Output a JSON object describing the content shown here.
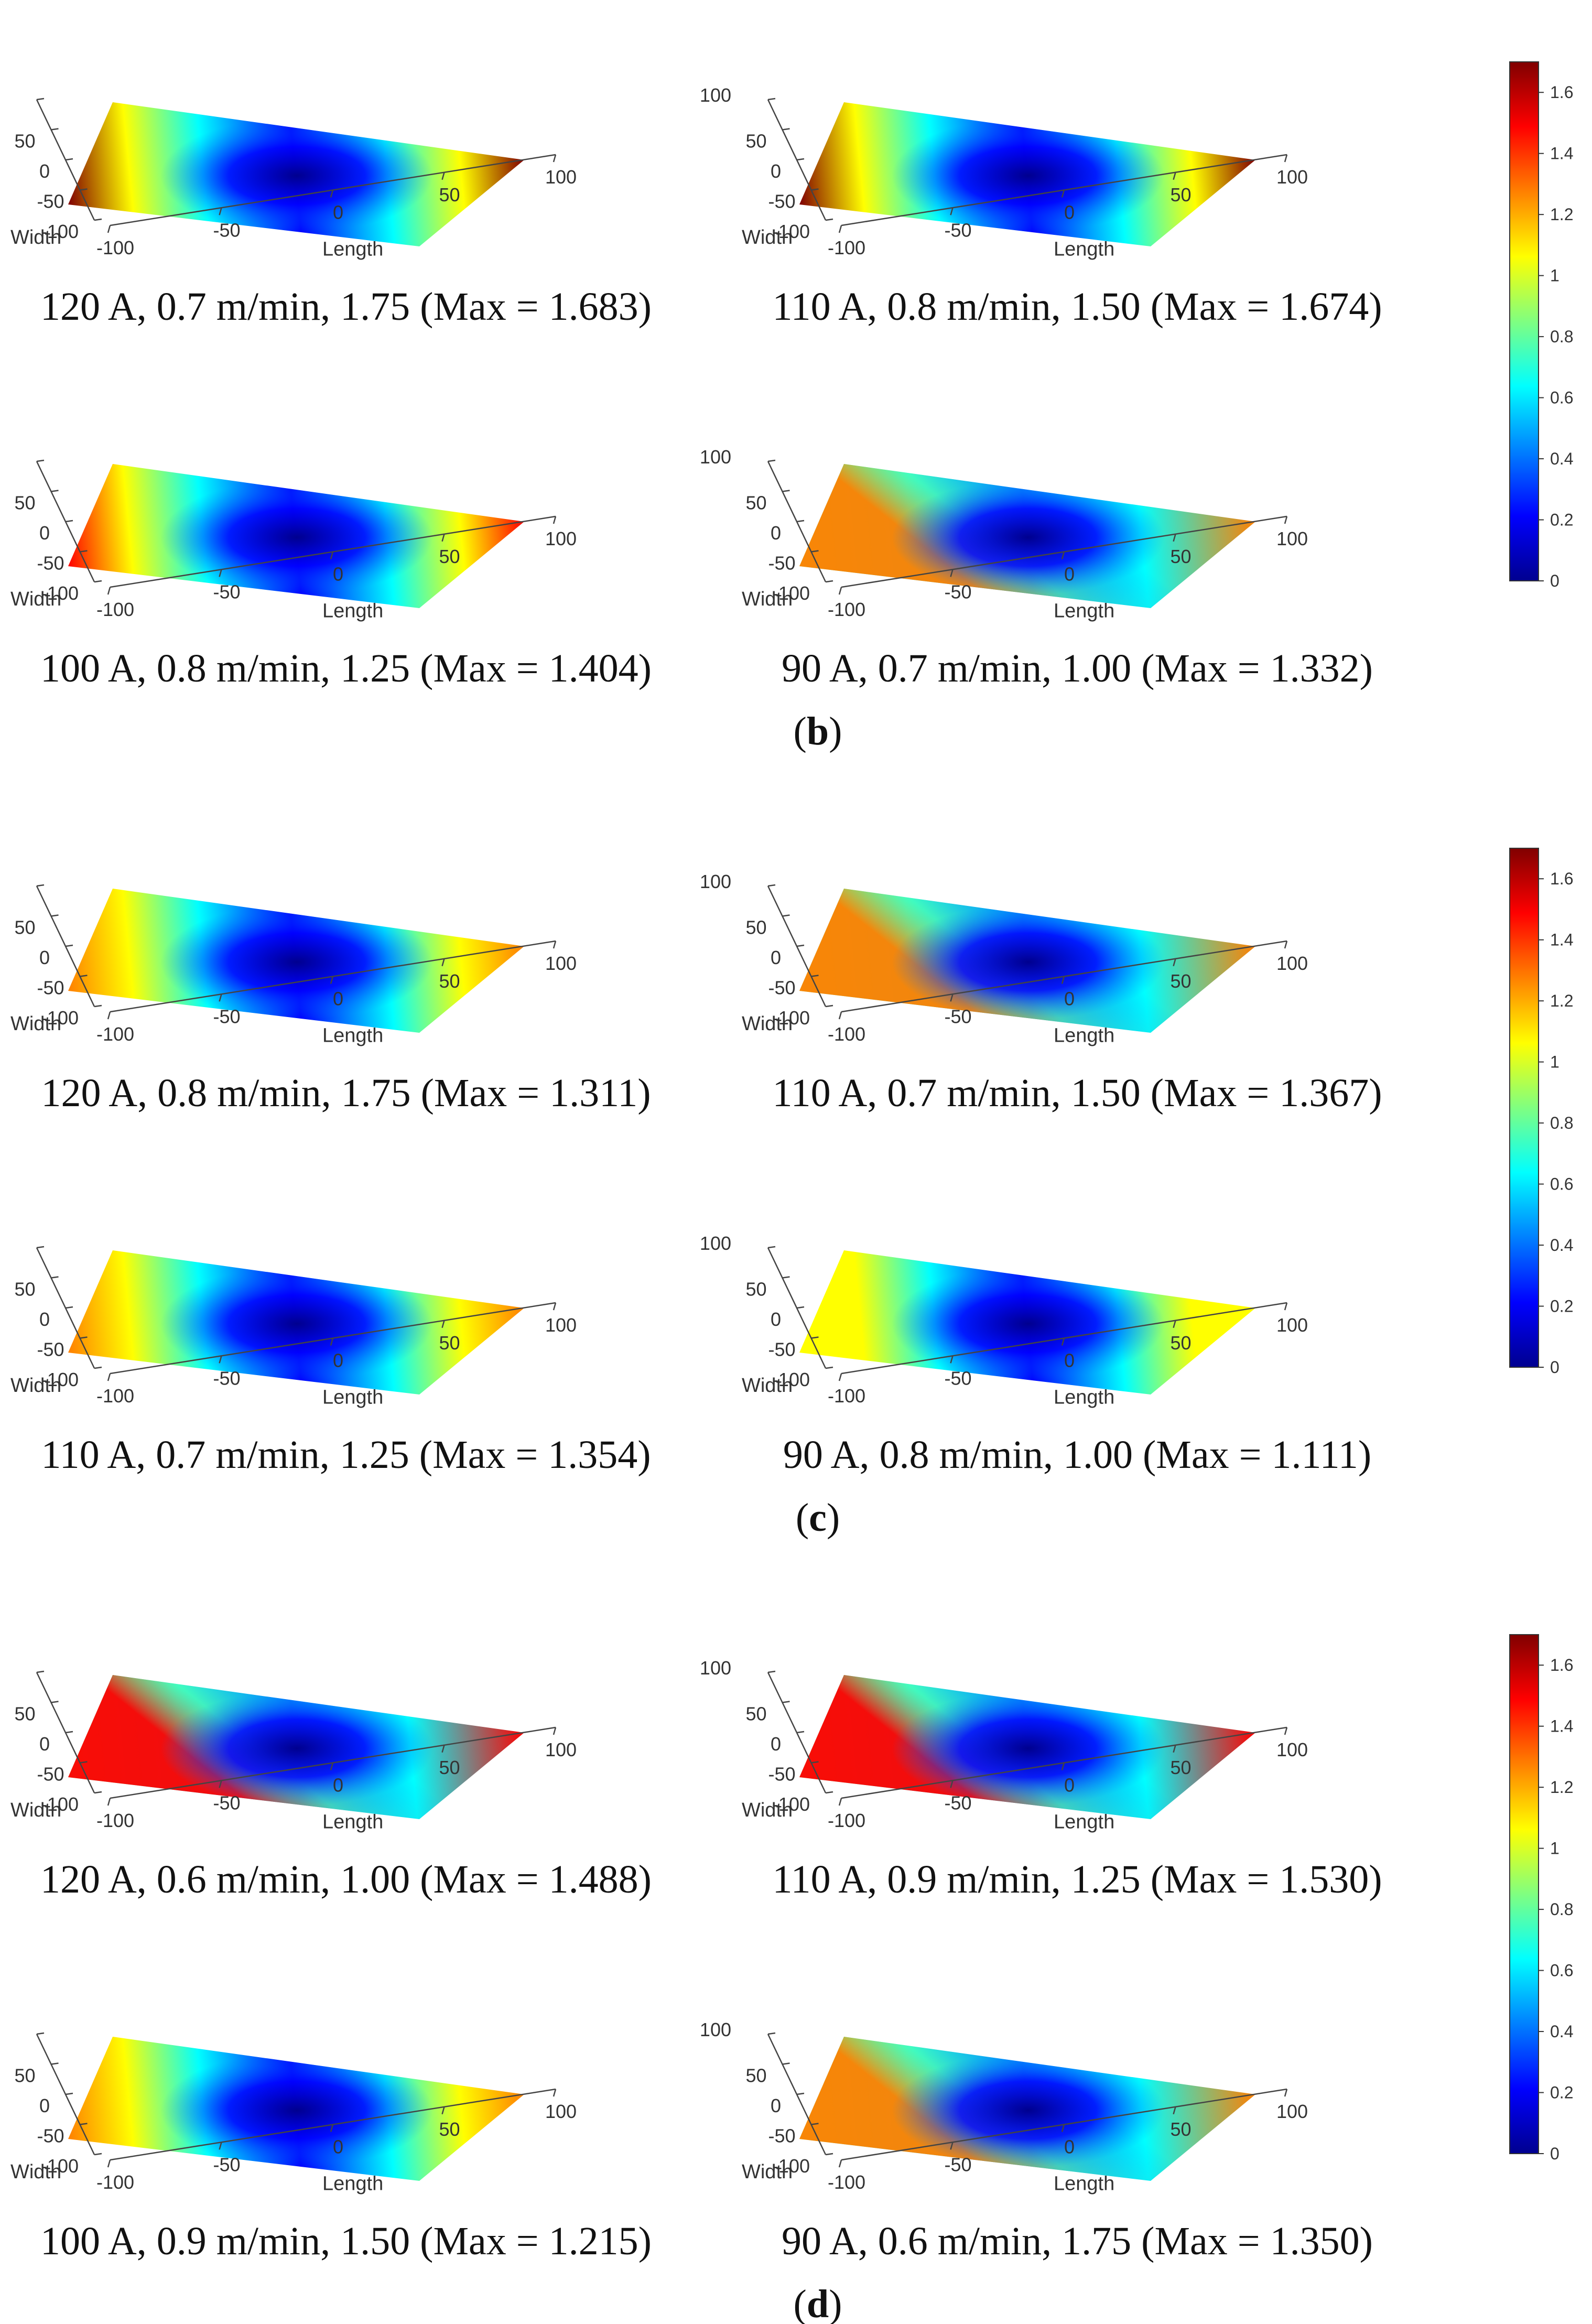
{
  "figure": {
    "surface_axes": {
      "width_label": "Width",
      "length_label": "Length",
      "width_ticks": [
        "100",
        "50",
        "0",
        "-50",
        "-100"
      ],
      "length_ticks": [
        "-100",
        "-50",
        "0",
        "50",
        "100"
      ]
    },
    "colorbar": {
      "ticks": [
        "0",
        "0.2",
        "0.4",
        "0.6",
        "0.8",
        "1",
        "1.2",
        "1.4",
        "1.6"
      ],
      "tick_values": [
        0,
        0.2,
        0.4,
        0.6,
        0.8,
        1.0,
        1.2,
        1.4,
        1.6
      ],
      "range": [
        0,
        1.7
      ],
      "colormap": "jet",
      "colors": [
        "#00008f",
        "#0000ff",
        "#0080ff",
        "#00ffff",
        "#80ff80",
        "#ffff00",
        "#ff8000",
        "#ff0000",
        "#800000"
      ]
    },
    "parts": [
      {
        "label": "b",
        "label_inner": "b",
        "panels": [
          {
            "caption": "120 A, 0.7 m/min, 1.75 (Max = 1.683)",
            "max": 1.683,
            "hot_side": "both-ends"
          },
          {
            "caption": "110 A, 0.8 m/min, 1.50 (Max = 1.674)",
            "max": 1.674,
            "hot_side": "both-ends"
          },
          {
            "caption": "100 A, 0.8 m/min, 1.25 (Max = 1.404)",
            "max": 1.404,
            "hot_side": "both-ends"
          },
          {
            "caption": "90 A, 0.7 m/min, 1.00 (Max = 1.332)",
            "max": 1.332,
            "hot_side": "front"
          }
        ]
      },
      {
        "label": "c",
        "label_inner": "c",
        "panels": [
          {
            "caption": "120 A, 0.8 m/min, 1.75 (Max = 1.311)",
            "max": 1.311,
            "hot_side": "both-ends"
          },
          {
            "caption": "110 A, 0.7 m/min, 1.50 (Max = 1.367)",
            "max": 1.367,
            "hot_side": "front"
          },
          {
            "caption": "110 A, 0.7 m/min, 1.25 (Max = 1.354)",
            "max": 1.354,
            "hot_side": "both-ends"
          },
          {
            "caption": "90 A, 0.8 m/min, 1.00 (Max = 1.111)",
            "max": 1.111,
            "hot_side": "both-ends"
          }
        ]
      },
      {
        "label": "d",
        "label_inner": "d",
        "panels": [
          {
            "caption": "120 A, 0.6 m/min, 1.00 (Max = 1.488)",
            "max": 1.488,
            "hot_side": "front"
          },
          {
            "caption": "110 A, 0.9 m/min, 1.25 (Max = 1.530)",
            "max": 1.53,
            "hot_side": "front"
          },
          {
            "caption": "100 A, 0.9 m/min, 1.50 (Max = 1.215)",
            "max": 1.215,
            "hot_side": "both-ends"
          },
          {
            "caption": "90 A, 0.6 m/min, 1.75 (Max = 1.350)",
            "max": 1.35,
            "hot_side": "front"
          }
        ]
      }
    ]
  },
  "chart_data": [
    {
      "type": "heatmap",
      "panel": "b-1",
      "title": "120 A, 0.7 m/min, 1.75 (Max = 1.683)",
      "xlabel": "Length",
      "ylabel": "Width",
      "xlim": [
        -100,
        100
      ],
      "ylim": [
        -100,
        100
      ],
      "zlim": [
        0,
        1.683
      ],
      "z_max": 1.683
    },
    {
      "type": "heatmap",
      "panel": "b-2",
      "title": "110 A, 0.8 m/min, 1.50 (Max = 1.674)",
      "xlabel": "Length",
      "ylabel": "Width",
      "xlim": [
        -100,
        100
      ],
      "ylim": [
        -100,
        100
      ],
      "zlim": [
        0,
        1.674
      ],
      "z_max": 1.674
    },
    {
      "type": "heatmap",
      "panel": "b-3",
      "title": "100 A, 0.8 m/min, 1.25 (Max = 1.404)",
      "xlabel": "Length",
      "ylabel": "Width",
      "xlim": [
        -100,
        100
      ],
      "ylim": [
        -100,
        100
      ],
      "zlim": [
        0,
        1.404
      ],
      "z_max": 1.404
    },
    {
      "type": "heatmap",
      "panel": "b-4",
      "title": "90 A, 0.7 m/min, 1.00 (Max = 1.332)",
      "xlabel": "Length",
      "ylabel": "Width",
      "xlim": [
        -100,
        100
      ],
      "ylim": [
        -100,
        100
      ],
      "zlim": [
        0,
        1.332
      ],
      "z_max": 1.332
    },
    {
      "type": "heatmap",
      "panel": "c-1",
      "title": "120 A, 0.8 m/min, 1.75 (Max = 1.311)",
      "xlabel": "Length",
      "ylabel": "Width",
      "xlim": [
        -100,
        100
      ],
      "ylim": [
        -100,
        100
      ],
      "zlim": [
        0,
        1.311
      ],
      "z_max": 1.311
    },
    {
      "type": "heatmap",
      "panel": "c-2",
      "title": "110 A, 0.7 m/min, 1.50 (Max = 1.367)",
      "xlabel": "Length",
      "ylabel": "Width",
      "xlim": [
        -100,
        100
      ],
      "ylim": [
        -100,
        100
      ],
      "zlim": [
        0,
        1.367
      ],
      "z_max": 1.367
    },
    {
      "type": "heatmap",
      "panel": "c-3",
      "title": "110 A, 0.7 m/min, 1.25 (Max = 1.354)",
      "xlabel": "Length",
      "ylabel": "Width",
      "xlim": [
        -100,
        100
      ],
      "ylim": [
        -100,
        100
      ],
      "zlim": [
        0,
        1.354
      ],
      "z_max": 1.354
    },
    {
      "type": "heatmap",
      "panel": "c-4",
      "title": "90 A, 0.8 m/min, 1.00 (Max = 1.111)",
      "xlabel": "Length",
      "ylabel": "Width",
      "xlim": [
        -100,
        100
      ],
      "ylim": [
        -100,
        100
      ],
      "zlim": [
        0,
        1.111
      ],
      "z_max": 1.111
    },
    {
      "type": "heatmap",
      "panel": "d-1",
      "title": "120 A, 0.6 m/min, 1.00 (Max = 1.488)",
      "xlabel": "Length",
      "ylabel": "Width",
      "xlim": [
        -100,
        100
      ],
      "ylim": [
        -100,
        100
      ],
      "zlim": [
        0,
        1.488
      ],
      "z_max": 1.488
    },
    {
      "type": "heatmap",
      "panel": "d-2",
      "title": "110 A, 0.9 m/min, 1.25 (Max = 1.530)",
      "xlabel": "Length",
      "ylabel": "Width",
      "xlim": [
        -100,
        100
      ],
      "ylim": [
        -100,
        100
      ],
      "zlim": [
        0,
        1.53
      ],
      "z_max": 1.53
    },
    {
      "type": "heatmap",
      "panel": "d-3",
      "title": "100 A, 0.9 m/min, 1.50 (Max = 1.215)",
      "xlabel": "Length",
      "ylabel": "Width",
      "xlim": [
        -100,
        100
      ],
      "ylim": [
        -100,
        100
      ],
      "zlim": [
        0,
        1.215
      ],
      "z_max": 1.215
    },
    {
      "type": "heatmap",
      "panel": "d-4",
      "title": "90 A, 0.6 m/min, 1.75 (Max = 1.350)",
      "xlabel": "Length",
      "ylabel": "Width",
      "xlim": [
        -100,
        100
      ],
      "ylim": [
        -100,
        100
      ],
      "zlim": [
        0,
        1.35
      ],
      "z_max": 1.35
    }
  ]
}
